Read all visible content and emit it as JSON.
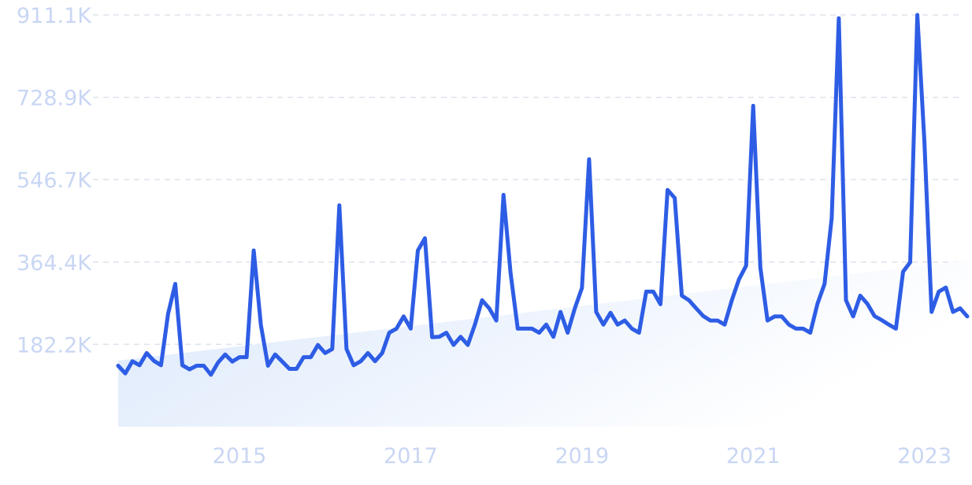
{
  "chart_data": {
    "type": "line",
    "title": "",
    "xlabel": "",
    "ylabel": "",
    "y_ticks": [
      "182.2K",
      "364.4K",
      "546.7K",
      "728.9K",
      "911.1K"
    ],
    "x_ticks": [
      "2015",
      "2017",
      "2019",
      "2021",
      "2023"
    ],
    "ylim": [
      0,
      911100
    ],
    "xlim": [
      "2014-01",
      "2023-12"
    ],
    "grid": true,
    "trend_band": true,
    "line_color": "#2e5de5",
    "band_color": "#dbe8fb",
    "series": [
      {
        "x": [
          "2014-01",
          "2014-02",
          "2014-03",
          "2014-04",
          "2014-05",
          "2014-06",
          "2014-07",
          "2014-08",
          "2014-09",
          "2014-10",
          "2014-11",
          "2014-12",
          "2015-01",
          "2015-02",
          "2015-03",
          "2015-04",
          "2015-05",
          "2015-06",
          "2015-07",
          "2015-08",
          "2015-09",
          "2015-10",
          "2015-11",
          "2015-12",
          "2016-01",
          "2016-02",
          "2016-03",
          "2016-04",
          "2016-05",
          "2016-06",
          "2016-07",
          "2016-08",
          "2016-09",
          "2016-10",
          "2016-11",
          "2016-12",
          "2017-01",
          "2017-02",
          "2017-03",
          "2017-04",
          "2017-05",
          "2017-06",
          "2017-07",
          "2017-08",
          "2017-09",
          "2017-10",
          "2017-11",
          "2017-12",
          "2018-01",
          "2018-02",
          "2018-03",
          "2018-04",
          "2018-05",
          "2018-06",
          "2018-07",
          "2018-08",
          "2018-09",
          "2018-10",
          "2018-11",
          "2018-12",
          "2019-01",
          "2019-02",
          "2019-03",
          "2019-04",
          "2019-05",
          "2019-06",
          "2019-07",
          "2019-08",
          "2019-09",
          "2019-10",
          "2019-11",
          "2019-12",
          "2020-01",
          "2020-02",
          "2020-03",
          "2020-04",
          "2020-05",
          "2020-06",
          "2020-07",
          "2020-08",
          "2020-09",
          "2020-10",
          "2020-11",
          "2020-12",
          "2021-01",
          "2021-02",
          "2021-03",
          "2021-04",
          "2021-05",
          "2021-06",
          "2021-07",
          "2021-08",
          "2021-09",
          "2021-10",
          "2021-11",
          "2021-12",
          "2022-01",
          "2022-02",
          "2022-03",
          "2022-04",
          "2022-05",
          "2022-06",
          "2022-07",
          "2022-08",
          "2022-09",
          "2022-10",
          "2022-11",
          "2022-12",
          "2023-01",
          "2023-02",
          "2023-03",
          "2023-04",
          "2023-05",
          "2023-06",
          "2023-07",
          "2023-08",
          "2023-09",
          "2023-10",
          "2023-11",
          "2023-12"
        ],
        "values": [
          135000,
          118000,
          145000,
          136000,
          163000,
          146000,
          136000,
          250000,
          316000,
          136000,
          127000,
          135000,
          135000,
          115000,
          142000,
          160000,
          144000,
          154000,
          154000,
          390000,
          225000,
          135000,
          160000,
          144000,
          128000,
          128000,
          154000,
          154000,
          181000,
          163000,
          172000,
          490000,
          172000,
          136000,
          145000,
          163000,
          145000,
          163000,
          208000,
          217000,
          244000,
          217000,
          390000,
          417000,
          198000,
          199000,
          208000,
          181000,
          199000,
          181000,
          226000,
          280000,
          262000,
          235000,
          513000,
          340000,
          217000,
          217000,
          217000,
          208000,
          226000,
          199000,
          254000,
          208000,
          262000,
          307000,
          592000,
          254000,
          226000,
          252000,
          226000,
          235000,
          217000,
          208000,
          299000,
          299000,
          271000,
          524000,
          506000,
          290000,
          280000,
          262000,
          245000,
          235000,
          235000,
          226000,
          280000,
          326000,
          356000,
          710000,
          352000,
          235000,
          244000,
          244000,
          226000,
          217000,
          217000,
          208000,
          272000,
          316000,
          462000,
          904000,
          280000,
          244000,
          290000,
          272000,
          245000,
          236000,
          226000,
          217000,
          343000,
          364000,
          911100,
          630000,
          254000,
          299000,
          308000,
          254000,
          262000,
          244000
        ]
      }
    ]
  }
}
